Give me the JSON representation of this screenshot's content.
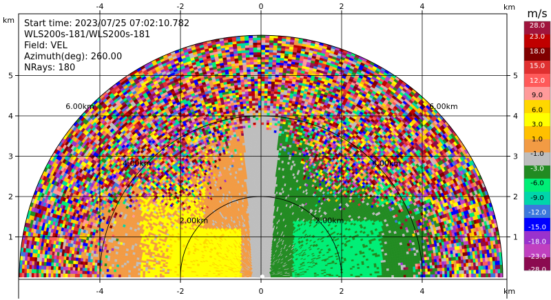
{
  "chart_data": {
    "type": "heatmap",
    "subtype": "radar-ppi-sector",
    "info": [
      "Start time: 2023/07/25 07:02:10.782",
      "WLS200s-181/WLS200s-181",
      "Field: VEL",
      "Azimuth(deg): 260.00",
      "NRays: 180"
    ],
    "x_axis": {
      "unit": "km",
      "range": [
        -6.0,
        6.0
      ],
      "ticks": [
        -4,
        -2,
        0,
        2,
        4
      ]
    },
    "y_axis": {
      "unit": "km",
      "range": [
        0,
        5.9
      ],
      "ticks": [
        1,
        2,
        3,
        4,
        5
      ]
    },
    "max_range_km": 6.0,
    "range_rings": [
      {
        "radius_km": 2,
        "label": "2.00km"
      },
      {
        "radius_km": 4,
        "label": "4.00km"
      },
      {
        "radius_km": 6,
        "label": "6.00km"
      }
    ],
    "grid": true,
    "colorbar": {
      "unit": "m/s",
      "placement": "right",
      "labels": [
        "28.0",
        "23.0",
        "18.0",
        "15.0",
        "12.0",
        "9.0",
        "6.0",
        "3.0",
        "1.0",
        "-1.0",
        "-3.0",
        "-6.0",
        "-9.0",
        "-12.0",
        "-15.0",
        "-18.0",
        "-23.0",
        "-28.0"
      ],
      "colors": [
        "#a0143c",
        "#c00000",
        "#800000",
        "#e03030",
        "#ff5a5a",
        "#ff9a9a",
        "#ffd700",
        "#ffff00",
        "#ffc000",
        "#f29b44",
        "#bebebe",
        "#228b22",
        "#00ee76",
        "#00d5aa",
        "#3c78dc",
        "#0000ff",
        "#9a32cd",
        "#c040c0",
        "#8b0a50"
      ]
    },
    "field_regions": {
      "left_near": "positive velocities 3 to 9 m/s (yellow/orange)",
      "center_strip": "-1 to 1 m/s (gray)",
      "right_near": "negative velocities -3 to -9 m/s (green)",
      "outer_ring": "noisy mixed values, -28 to 28 m/s"
    }
  }
}
